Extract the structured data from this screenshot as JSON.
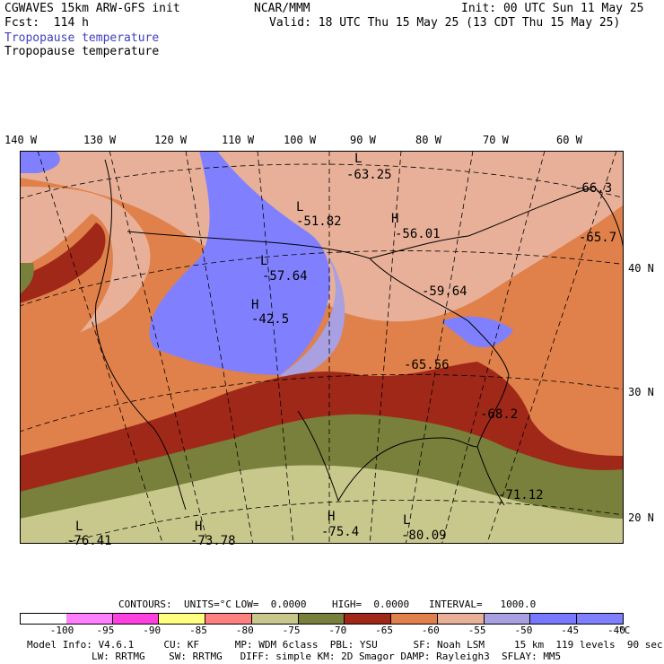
{
  "header": {
    "left_line1": "CGWAVES 15km ARW-GFS init",
    "left_line2": "Fcst:  114 h",
    "center_line1": "NCAR/MMM",
    "right_line1": "Init: 00 UTC Sun 11 May 25",
    "right_line2": "Valid: 18 UTC Thu 15 May 25 (13 CDT Thu 15 May 25)",
    "field_title_blue": "Tropopause temperature",
    "field_title_black": "Tropopause temperature"
  },
  "longitude_labels": [
    "140 W",
    "130 W",
    "120 W",
    "110 W",
    "100 W",
    "90 W",
    "80 W",
    "70 W",
    "60 W"
  ],
  "latitude_labels": [
    "40 N",
    "30 N",
    "20 N"
  ],
  "map_annotations": [
    {
      "letter": "L",
      "value": "-63.25"
    },
    {
      "letter": "L",
      "value": "-51.82"
    },
    {
      "letter": "H",
      "value": "-56.01"
    },
    {
      "letter": "L",
      "value": "-57.64"
    },
    {
      "letter": "H",
      "value": "-42.5"
    },
    {
      "letter": "",
      "value": "-59.64"
    },
    {
      "letter": "",
      "value": "-65.56"
    },
    {
      "letter": "",
      "value": "-68.2"
    },
    {
      "letter": "",
      "value": "-71.12"
    },
    {
      "letter": "",
      "value": "-66.3"
    },
    {
      "letter": "",
      "value": "-65.7"
    },
    {
      "letter": "L",
      "value": "-76.41"
    },
    {
      "letter": "H",
      "value": "-73.78"
    },
    {
      "letter": "H",
      "value": "-75.4"
    },
    {
      "letter": "L",
      "value": "-80.09"
    }
  ],
  "contour_info": {
    "contours_label": "CONTOURS:",
    "units": "UNITS=°C",
    "low": "LOW=  0.0000",
    "high": "HIGH=  0.0000",
    "interval": "INTERVAL=   1000.0"
  },
  "color_scale": {
    "colors": [
      "#ffffff",
      "#ff80ff",
      "#ff40e0",
      "#ffff80",
      "#ff8080",
      "#c8c88c",
      "#78803c",
      "#a02818",
      "#e0804a",
      "#e8b098",
      "#a8a0e0",
      "#7878ff",
      "#8080ff"
    ],
    "labels": [
      "-100",
      "-95",
      "-90",
      "-85",
      "-80",
      "-75",
      "-70",
      "-65",
      "-60",
      "-55",
      "-50",
      "-45",
      "-40"
    ],
    "unit": "°C"
  },
  "footer": {
    "line1": "Model Info: V4.6.1     CU: KF      MP: WDM 6class  PBL: YSU      SF: Noah LSM     15 km  119 levels  90 sec",
    "line2": "LW: RRTMG    SW: RRTMG   DIFF: simple KM: 2D Smagor DAMP: Rayleigh3  SFLAY: MM5"
  }
}
